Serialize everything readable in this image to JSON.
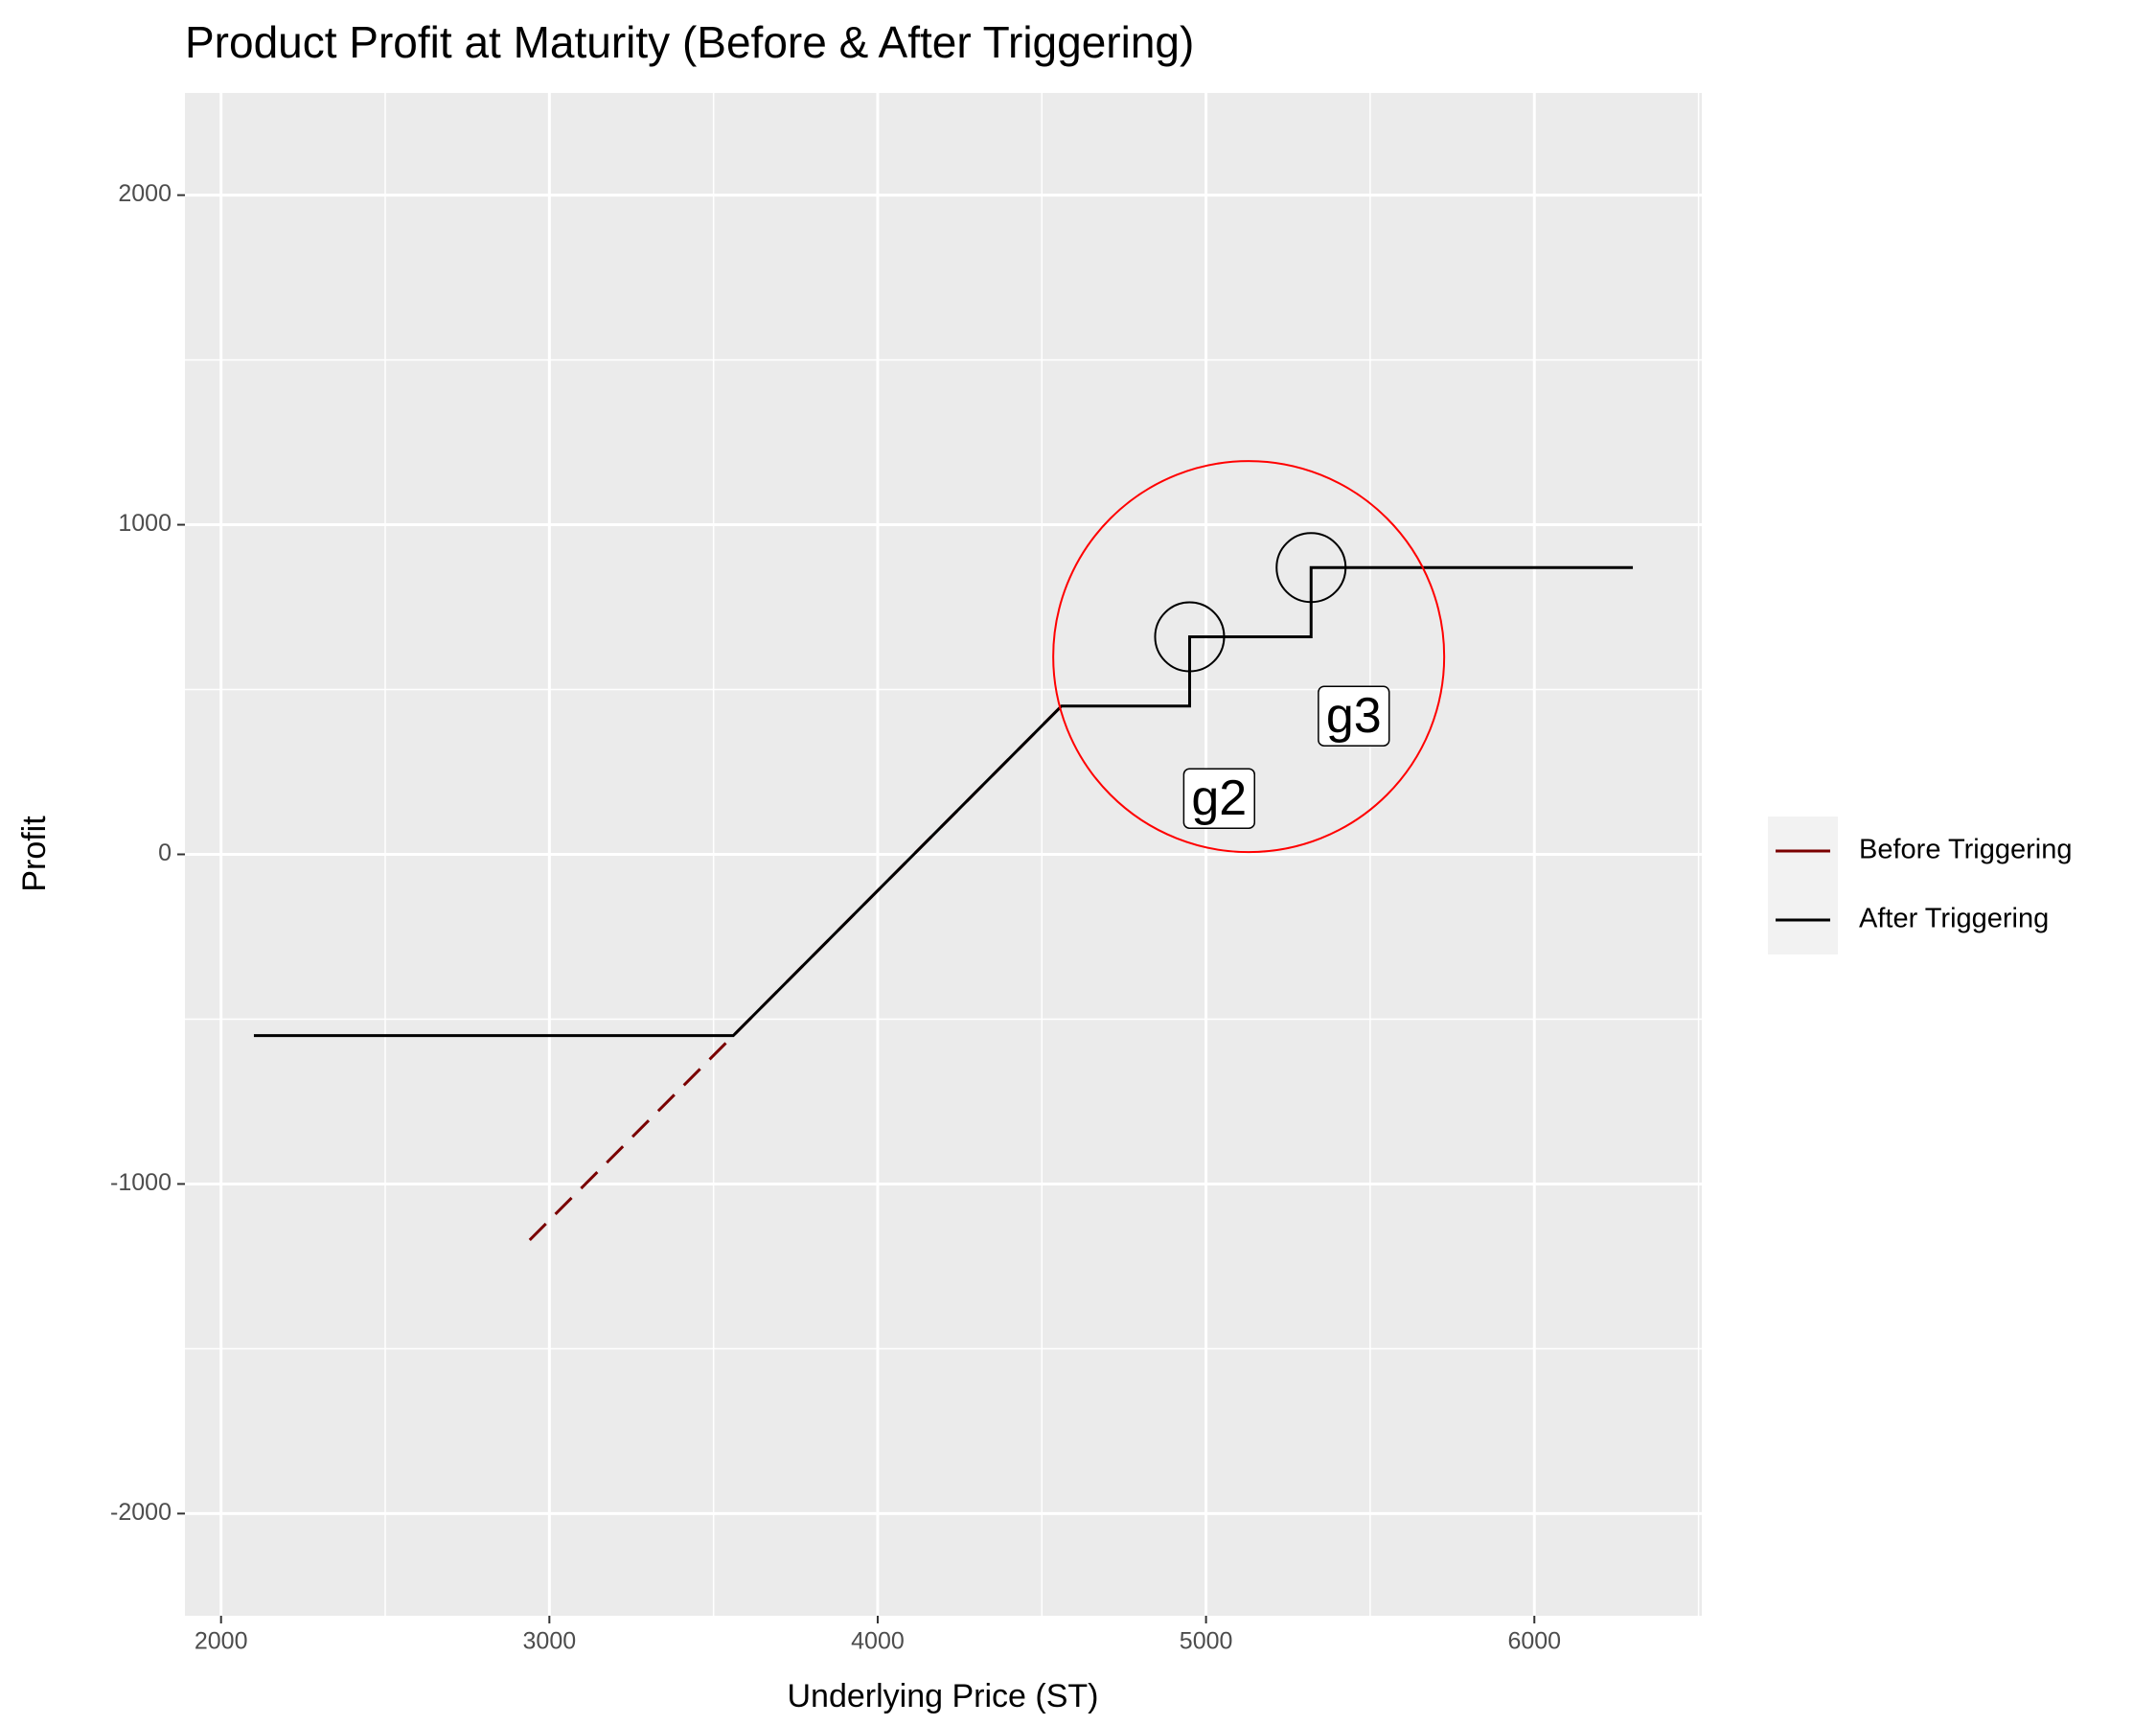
{
  "chart_data": {
    "type": "line",
    "title": "Product Profit at Maturity (Before & After Triggering)",
    "x_label": "Underlying Price (ST)",
    "y_label": "Profit",
    "xlim": [
      1890,
      6510
    ],
    "ylim": [
      -2310,
      2310
    ],
    "xticks": [
      2000,
      3000,
      4000,
      5000,
      6000
    ],
    "yticks": [
      -2000,
      -1000,
      0,
      1000,
      2000
    ],
    "grid": true,
    "legend_position": "right",
    "series": [
      {
        "name": "Before Triggering",
        "color": "#7a0000",
        "dashed": true,
        "x": [
          2940,
          3560,
          4560
        ],
        "values": [
          -1170,
          -550,
          450
        ]
      },
      {
        "name": "After Triggering",
        "color": "#000000",
        "dashed": false,
        "x": [
          2100,
          3560,
          4560,
          4950,
          4950,
          5320,
          5320,
          6300
        ],
        "values": [
          -550,
          -550,
          450,
          450,
          660,
          660,
          870,
          870
        ]
      }
    ],
    "circles": [
      {
        "x": 5130,
        "y": 600,
        "color": "#ff0000",
        "size": "large"
      },
      {
        "x": 4950,
        "y": 660,
        "color": "#000000",
        "size": "small"
      },
      {
        "x": 5320,
        "y": 870,
        "color": "#000000",
        "size": "small"
      }
    ],
    "annotations": [
      {
        "text": "g2",
        "x": 5040,
        "y": 160
      },
      {
        "text": "g3",
        "x": 5450,
        "y": 410
      }
    ]
  }
}
